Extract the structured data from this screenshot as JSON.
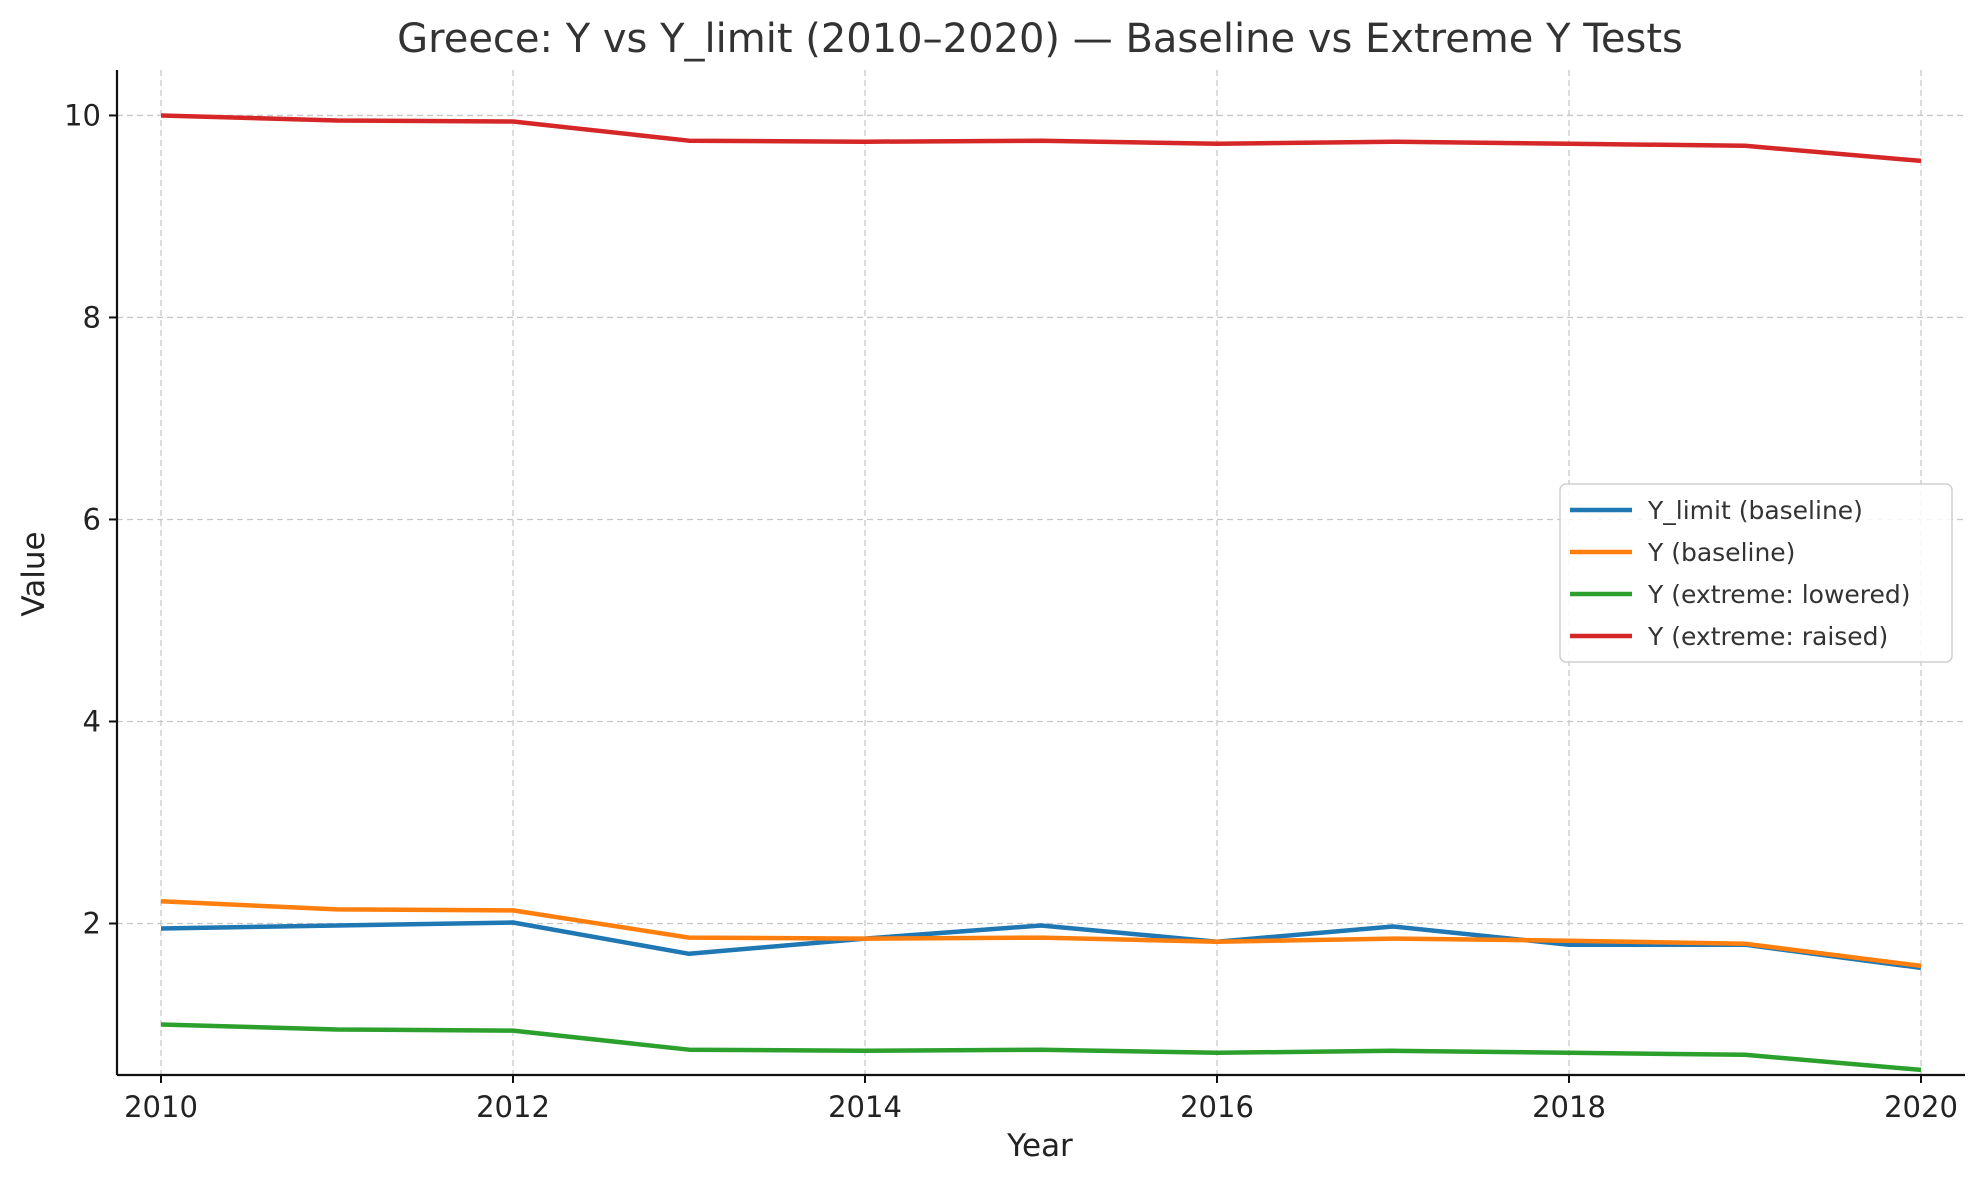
{
  "chart_data": {
    "type": "line",
    "title": "Greece: Y vs Y_limit (2010–2020) — Baseline vs Extreme Y Tests",
    "xlabel": "Year",
    "ylabel": "Value",
    "x": [
      2010,
      2011,
      2012,
      2013,
      2014,
      2015,
      2016,
      2017,
      2018,
      2019,
      2020
    ],
    "xlim": [
      2009.75,
      2020.25
    ],
    "ylim": [
      0.5,
      10.45
    ],
    "x_ticks": [
      2010,
      2012,
      2014,
      2016,
      2018,
      2020
    ],
    "y_ticks": [
      2,
      4,
      6,
      8,
      10
    ],
    "grid": true,
    "legend_position": "center-right",
    "series": [
      {
        "name": "Y_limit (baseline)",
        "color": "#1f77b4",
        "values": [
          1.95,
          1.98,
          2.01,
          1.7,
          1.85,
          1.98,
          1.82,
          1.97,
          1.79,
          1.79,
          1.56
        ]
      },
      {
        "name": "Y (baseline)",
        "color": "#ff7f0e",
        "values": [
          2.22,
          2.14,
          2.13,
          1.86,
          1.85,
          1.86,
          1.82,
          1.85,
          1.83,
          1.8,
          1.58
        ]
      },
      {
        "name": "Y (extreme: lowered)",
        "color": "#2ca02c",
        "values": [
          1.0,
          0.95,
          0.94,
          0.75,
          0.74,
          0.75,
          0.72,
          0.74,
          0.72,
          0.7,
          0.55
        ]
      },
      {
        "name": "Y (extreme: raised)",
        "color": "#d62728",
        "values": [
          10.0,
          9.95,
          9.94,
          9.75,
          9.74,
          9.75,
          9.72,
          9.74,
          9.72,
          9.7,
          9.55
        ]
      }
    ]
  }
}
